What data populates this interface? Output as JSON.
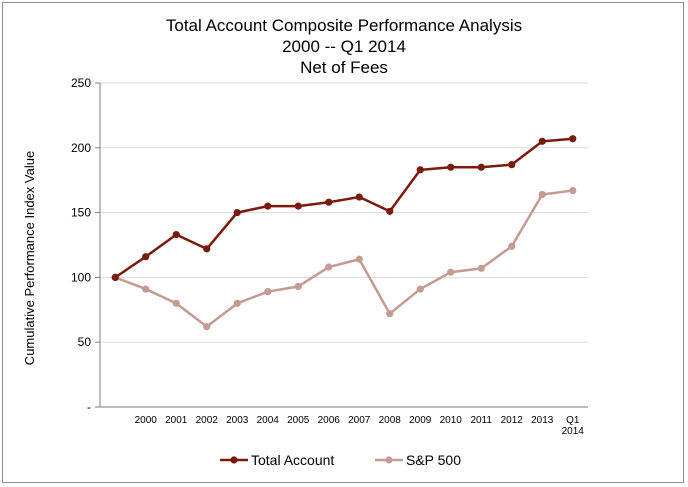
{
  "chart_data": {
    "type": "line",
    "title": [
      "Total Account Composite Performance Analysis",
      "2000 -- Q1 2014",
      "Net of Fees"
    ],
    "ylabel": "Cumulative Performance Index Value",
    "xlabel": "",
    "ylim": [
      0,
      250
    ],
    "yticks": [
      0,
      50,
      100,
      150,
      200,
      250
    ],
    "ytick_labels": [
      "-",
      "50",
      "100",
      "150",
      "200",
      "250"
    ],
    "categories": [
      "",
      "2000",
      "2001",
      "2002",
      "2003",
      "2004",
      "2005",
      "2006",
      "2007",
      "2008",
      "2009",
      "2010",
      "2011",
      "2012",
      "2013",
      "Q1 2014"
    ],
    "category_lines": [
      [
        ""
      ],
      [
        "2000"
      ],
      [
        "2001"
      ],
      [
        "2002"
      ],
      [
        "2003"
      ],
      [
        "2004"
      ],
      [
        "2005"
      ],
      [
        "2006"
      ],
      [
        "2007"
      ],
      [
        "2008"
      ],
      [
        "2009"
      ],
      [
        "2010"
      ],
      [
        "2011"
      ],
      [
        "2012"
      ],
      [
        "2013"
      ],
      [
        "Q1",
        "2014"
      ]
    ],
    "grid": true,
    "legend_position": "bottom",
    "series": [
      {
        "name": "Total Account",
        "color": "#7a1a0c",
        "values": [
          100,
          116,
          133,
          122,
          150,
          155,
          155,
          158,
          162,
          151,
          183,
          185,
          185,
          187,
          205,
          207
        ]
      },
      {
        "name": "S&P 500",
        "color": "#c49a93",
        "values": [
          100,
          91,
          80,
          62,
          80,
          89,
          93,
          108,
          114,
          72,
          91,
          104,
          107,
          124,
          164,
          167
        ]
      }
    ]
  }
}
